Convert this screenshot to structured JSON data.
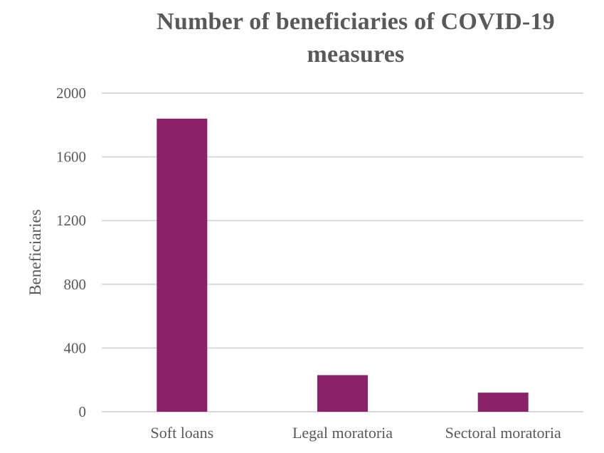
{
  "chart_data": {
    "type": "bar",
    "title": "Number of beneficiaries of COVID-19 measures",
    "xlabel": "",
    "ylabel": "Beneficiaries",
    "categories": [
      "Soft loans",
      "Legal moratoria",
      "Sectoral moratoria"
    ],
    "values": [
      1840,
      230,
      120
    ],
    "ylim": [
      0,
      2000
    ],
    "yticks": [
      0,
      400,
      800,
      1200,
      1600,
      2000
    ],
    "grid": true,
    "legend": "none",
    "bar_color": "#8B2269",
    "grid_color": "#D9D9D9",
    "text_color": "#595959"
  }
}
